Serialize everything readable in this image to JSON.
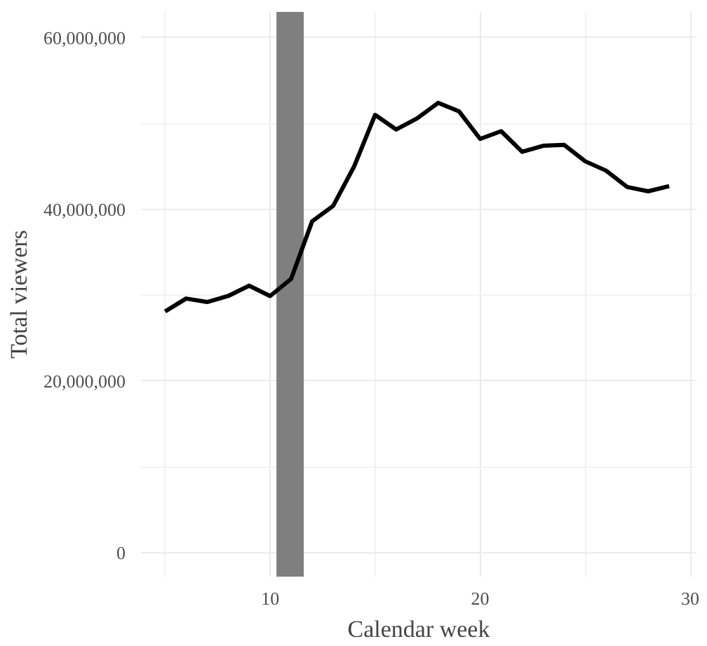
{
  "chart_data": {
    "type": "line",
    "xlabel": "Calendar week",
    "ylabel": "Total viewers",
    "x": [
      5,
      6,
      7,
      8,
      9,
      10,
      11,
      12,
      13,
      14,
      15,
      16,
      17,
      18,
      19,
      20,
      21,
      22,
      23,
      24,
      25,
      26,
      27,
      28,
      29
    ],
    "series": [
      {
        "color": "#000000",
        "values": [
          28100000,
          29600000,
          29200000,
          29900000,
          31100000,
          29900000,
          31900000,
          38600000,
          40400000,
          45000000,
          51000000,
          49300000,
          50600000,
          52400000,
          51400000,
          48200000,
          49100000,
          46700000,
          47400000,
          47500000,
          45600000,
          44500000,
          42600000,
          42100000,
          42700000
        ]
      }
    ],
    "xlim": [
      3.85,
      30.3
    ],
    "xticks": [
      10,
      20,
      30
    ],
    "ylim": [
      -2800000,
      63000000
    ],
    "yticks": [
      {
        "value": 0,
        "label": "0"
      },
      {
        "value": 20000000,
        "label": "20,000,000"
      },
      {
        "value": 40000000,
        "label": "40,000,000"
      },
      {
        "value": 60000000,
        "label": "60,000,000"
      }
    ],
    "bands": [
      {
        "axis": "x",
        "from": 10.3,
        "to": 11.6,
        "color": "#7f7f7f"
      }
    ],
    "grid": true,
    "line_style": "solid",
    "marker": "none"
  }
}
